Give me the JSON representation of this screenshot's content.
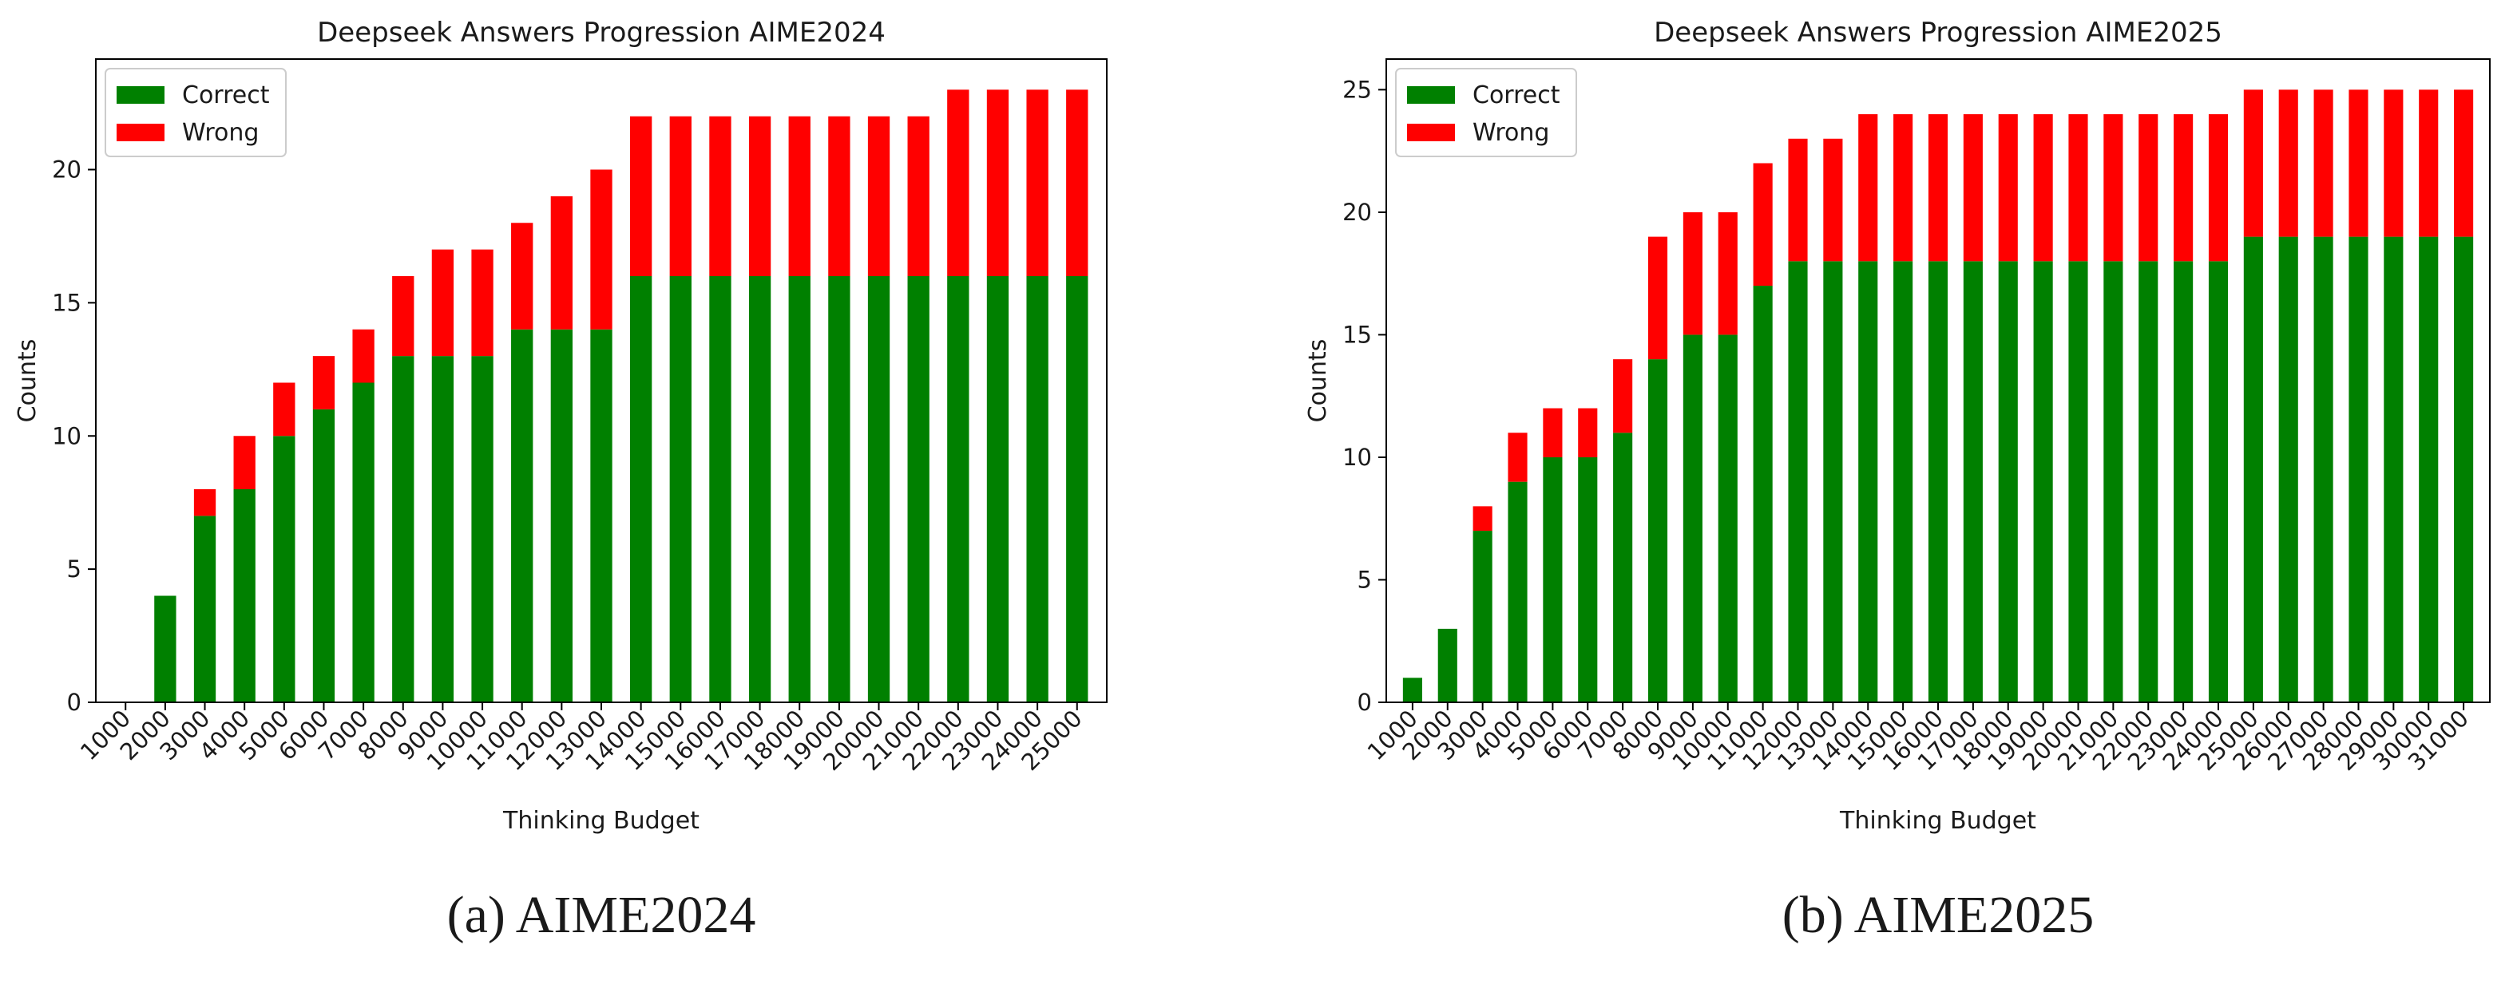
{
  "colors": {
    "correct": "#008000",
    "wrong": "#ff0000",
    "axis": "#000000"
  },
  "chart_data": [
    {
      "type": "bar",
      "stacked": true,
      "title": "Deepseek Answers Progression AIME2024",
      "xlabel": "Thinking Budget",
      "ylabel": "Counts",
      "caption": "(a) AIME2024",
      "ylim": [
        0,
        24.15
      ],
      "yticks": [
        0,
        5,
        10,
        15,
        20
      ],
      "legend_position": "top-left",
      "categories": [
        "1000",
        "2000",
        "3000",
        "4000",
        "5000",
        "6000",
        "7000",
        "8000",
        "9000",
        "10000",
        "11000",
        "12000",
        "13000",
        "14000",
        "15000",
        "16000",
        "17000",
        "18000",
        "19000",
        "20000",
        "21000",
        "22000",
        "23000",
        "24000",
        "25000"
      ],
      "series": [
        {
          "name": "Correct",
          "values": [
            0,
            4,
            7,
            8,
            10,
            11,
            12,
            13,
            13,
            13,
            14,
            14,
            14,
            16,
            16,
            16,
            16,
            16,
            16,
            16,
            16,
            16,
            16,
            16,
            16
          ]
        },
        {
          "name": "Wrong",
          "values": [
            0,
            0,
            1,
            2,
            2,
            2,
            2,
            3,
            4,
            4,
            4,
            5,
            6,
            6,
            6,
            6,
            6,
            6,
            6,
            6,
            6,
            7,
            7,
            7,
            7
          ]
        }
      ]
    },
    {
      "type": "bar",
      "stacked": true,
      "title": "Deepseek Answers Progression AIME2025",
      "xlabel": "Thinking Budget",
      "ylabel": "Counts",
      "caption": "(b) AIME2025",
      "ylim": [
        0,
        26.25
      ],
      "yticks": [
        0,
        5,
        10,
        15,
        20,
        25
      ],
      "legend_position": "top-left",
      "categories": [
        "1000",
        "2000",
        "3000",
        "4000",
        "5000",
        "6000",
        "7000",
        "8000",
        "9000",
        "10000",
        "11000",
        "12000",
        "13000",
        "14000",
        "15000",
        "16000",
        "17000",
        "18000",
        "19000",
        "20000",
        "21000",
        "22000",
        "23000",
        "24000",
        "25000",
        "26000",
        "27000",
        "28000",
        "29000",
        "30000",
        "31000"
      ],
      "series": [
        {
          "name": "Correct",
          "values": [
            1,
            3,
            7,
            9,
            10,
            10,
            11,
            14,
            15,
            15,
            17,
            18,
            18,
            18,
            18,
            18,
            18,
            18,
            18,
            18,
            18,
            18,
            18,
            18,
            19,
            19,
            19,
            19,
            19,
            19,
            19
          ]
        },
        {
          "name": "Wrong",
          "values": [
            0,
            0,
            1,
            2,
            2,
            2,
            3,
            5,
            5,
            5,
            5,
            5,
            5,
            6,
            6,
            6,
            6,
            6,
            6,
            6,
            6,
            6,
            6,
            6,
            6,
            6,
            6,
            6,
            6,
            6,
            6
          ]
        }
      ]
    }
  ]
}
